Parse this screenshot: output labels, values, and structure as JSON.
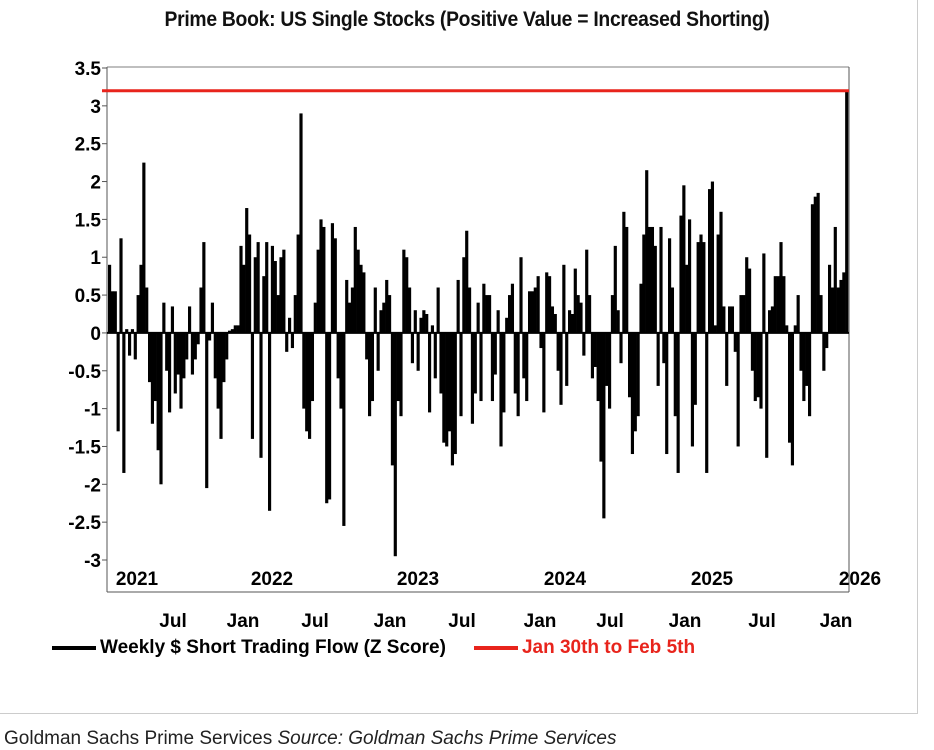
{
  "chart_data": {
    "type": "bar",
    "title": "Prime Book: US Single Stocks (Positive Value = Increased Shorting)",
    "ylim": [
      -3,
      3.5
    ],
    "yticks": [
      "3.5",
      "3",
      "2.5",
      "2",
      "1.5",
      "1",
      "0.5",
      "0",
      "-0.5",
      "-1",
      "-1.5",
      "-2",
      "-2.5",
      "-3"
    ],
    "year_labels": [
      "2021",
      "2022",
      "2023",
      "2024",
      "2025",
      "2026"
    ],
    "month_labels": [
      "Jul",
      "Jan",
      "Jul",
      "Jan",
      "Jul",
      "Jan",
      "Jul",
      "Jan",
      "Jul",
      "Jan"
    ],
    "grid": false,
    "legend_position": "bottom",
    "series": [
      {
        "name": "Weekly $ Short Trading Flow (Z Score)",
        "color": "#000000",
        "values": [
          0.9,
          0.55,
          0.55,
          -1.3,
          1.25,
          -1.85,
          0.05,
          -0.3,
          0.05,
          -0.35,
          0.5,
          0.9,
          2.25,
          0.6,
          -0.65,
          -1.2,
          -0.9,
          -1.55,
          -2.0,
          0.4,
          -0.5,
          -1.05,
          0.35,
          -0.8,
          -0.55,
          -1.0,
          -0.6,
          -0.35,
          0.35,
          -0.55,
          -0.35,
          -0.15,
          0.6,
          1.2,
          -2.05,
          -0.1,
          0.4,
          -0.6,
          -1.0,
          -1.4,
          -0.65,
          -0.35,
          0.03,
          0.05,
          0.1,
          0.1,
          1.15,
          0.9,
          1.65,
          1.3,
          -1.4,
          1.0,
          1.2,
          -1.65,
          0.75,
          1.2,
          -2.35,
          1.15,
          0.95,
          0.5,
          1.0,
          1.1,
          -0.25,
          0.2,
          -0.2,
          0.5,
          1.3,
          2.9,
          -1.0,
          -1.3,
          -1.4,
          -0.9,
          0.4,
          1.1,
          1.5,
          1.4,
          -2.25,
          -2.2,
          1.45,
          1.25,
          -0.6,
          -1.0,
          -2.55,
          0.7,
          0.4,
          0.6,
          1.4,
          1.1,
          0.9,
          0.8,
          -0.35,
          -1.1,
          -0.9,
          0.6,
          -0.5,
          0.3,
          0.4,
          0.7,
          0.5,
          -1.75,
          -2.95,
          -0.9,
          -1.1,
          1.1,
          1.0,
          0.6,
          -0.4,
          0.3,
          -0.5,
          0.2,
          0.3,
          0.25,
          -1.05,
          0.1,
          -0.6,
          0.6,
          -0.8,
          -1.45,
          -1.5,
          -1.3,
          -1.75,
          -1.6,
          0.7,
          -1.1,
          1.0,
          1.35,
          0.6,
          -1.2,
          -0.8,
          0.4,
          -0.9,
          0.65,
          0.5,
          0.5,
          -0.9,
          -0.55,
          0.3,
          -1.5,
          -1.05,
          0.2,
          0.5,
          0.65,
          -0.8,
          -1.1,
          1.0,
          -0.6,
          -0.9,
          0.55,
          0.55,
          0.6,
          0.75,
          -0.2,
          -1.05,
          0.8,
          0.75,
          0.35,
          0.25,
          -0.5,
          -0.95,
          0.9,
          -0.7,
          0.3,
          0.25,
          0.85,
          0.5,
          0.4,
          -0.3,
          1.1,
          0.5,
          -0.6,
          -0.45,
          -0.9,
          -1.7,
          -2.45,
          -0.7,
          -1.0,
          0.5,
          1.15,
          0.3,
          -0.4,
          1.6,
          1.4,
          -0.85,
          -1.6,
          -1.3,
          -1.1,
          0.65,
          1.3,
          2.15,
          1.4,
          1.4,
          1.15,
          -0.7,
          1.4,
          -0.4,
          -1.6,
          1.25,
          0.6,
          -1.1,
          -1.85,
          1.55,
          1.95,
          0.9,
          1.5,
          -1.5,
          -0.95,
          1.2,
          1.3,
          1.2,
          -1.85,
          1.9,
          2.0,
          0.1,
          1.3,
          1.6,
          0.35,
          -0.7,
          0.35,
          0.35,
          -0.25,
          -1.5,
          0.5,
          0.5,
          1.0,
          0.85,
          -0.5,
          -0.9,
          -0.85,
          -1.0,
          1.05,
          -1.65,
          0.3,
          0.35,
          0.75,
          0.75,
          1.2,
          0.75,
          0.1,
          -1.45,
          -1.75,
          0.1,
          0.5,
          -0.5,
          -0.9,
          -0.7,
          -1.1,
          1.7,
          1.8,
          1.85,
          0.5,
          -0.5,
          -0.2,
          0.9,
          0.6,
          1.4,
          0.6,
          0.7,
          0.8,
          3.2
        ]
      },
      {
        "name": "Jan 30th to Feb 5th",
        "color": "#e8241c",
        "type": "hline",
        "value": 3.2
      }
    ]
  },
  "footer": {
    "org": "Goldman Sachs Prime Services",
    "source_label": "Source:",
    "source": "Goldman Sachs Prime Services"
  }
}
